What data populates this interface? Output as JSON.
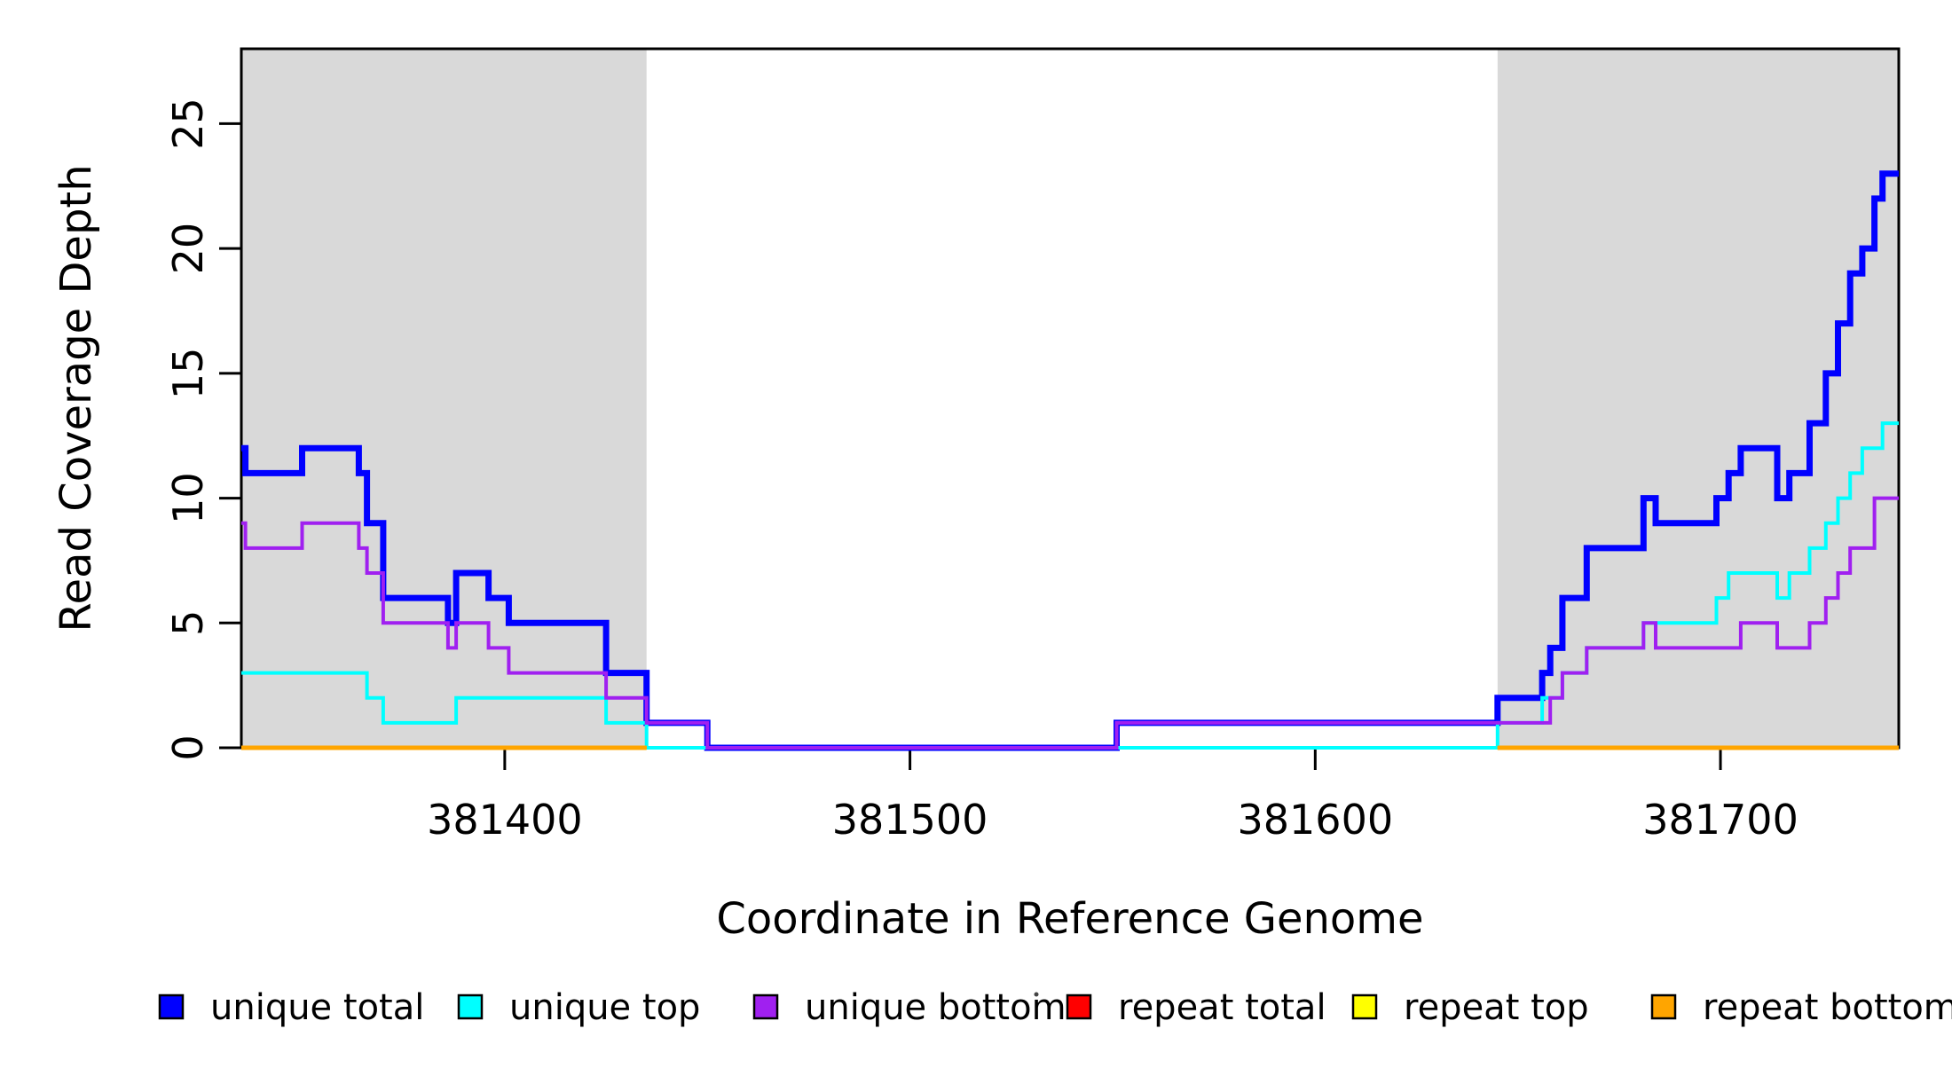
{
  "chart_data": {
    "type": "line",
    "subtype": "step",
    "title": "",
    "xlabel": "Coordinate in Reference Genome",
    "ylabel": "Read Coverage Depth",
    "xlim": [
      381335,
      381744
    ],
    "ylim": [
      0,
      28
    ],
    "x_ticks": [
      "381400",
      "381500",
      "381600",
      "381700"
    ],
    "y_ticks": [
      "0",
      "5",
      "10",
      "15",
      "20",
      "25"
    ],
    "grid": false,
    "legend_position": "bottom",
    "shaded_regions": [
      {
        "name": "repeat region left",
        "x0": 381335,
        "x1": 381435,
        "color": "#D9D9D9"
      },
      {
        "name": "repeat region right",
        "x0": 381645,
        "x1": 381744,
        "color": "#D9D9D9"
      }
    ],
    "series": [
      {
        "name": "unique total",
        "color": "#0000FF",
        "line_width": 7,
        "segments": [
          {
            "end": 381744,
            "steps": [
              [
                381335,
                12
              ],
              [
                381336,
                11
              ],
              [
                381350,
                12
              ],
              [
                381364,
                11
              ],
              [
                381366,
                9
              ],
              [
                381370,
                6
              ],
              [
                381386,
                5
              ],
              [
                381388,
                7
              ],
              [
                381396,
                6
              ],
              [
                381401,
                5
              ],
              [
                381425,
                3
              ],
              [
                381435,
                1
              ],
              [
                381450,
                0
              ],
              [
                381551,
                1
              ],
              [
                381645,
                2
              ],
              [
                381656,
                3
              ],
              [
                381658,
                4
              ],
              [
                381661,
                6
              ],
              [
                381667,
                8
              ],
              [
                381681,
                10
              ],
              [
                381684,
                9
              ],
              [
                381699,
                10
              ],
              [
                381702,
                11
              ],
              [
                381705,
                12
              ],
              [
                381714,
                10
              ],
              [
                381717,
                11
              ],
              [
                381722,
                13
              ],
              [
                381726,
                15
              ],
              [
                381729,
                17
              ],
              [
                381732,
                19
              ],
              [
                381735,
                20
              ],
              [
                381738,
                22
              ],
              [
                381740,
                23
              ]
            ]
          }
        ]
      },
      {
        "name": "unique top",
        "color": "#00FFFF",
        "line_width": 4,
        "segments": [
          {
            "end": 381744,
            "steps": [
              [
                381335,
                3
              ],
              [
                381366,
                2
              ],
              [
                381370,
                1
              ],
              [
                381388,
                2
              ],
              [
                381425,
                1
              ],
              [
                381435,
                0
              ],
              [
                381645,
                1
              ],
              [
                381656,
                2
              ],
              [
                381661,
                3
              ],
              [
                381667,
                4
              ],
              [
                381681,
                5
              ],
              [
                381699,
                6
              ],
              [
                381702,
                7
              ],
              [
                381714,
                6
              ],
              [
                381717,
                7
              ],
              [
                381722,
                8
              ],
              [
                381726,
                9
              ],
              [
                381729,
                10
              ],
              [
                381732,
                11
              ],
              [
                381735,
                12
              ],
              [
                381740,
                13
              ]
            ]
          }
        ]
      },
      {
        "name": "unique bottom",
        "color": "#A020F0",
        "line_width": 4,
        "segments": [
          {
            "end": 381744,
            "steps": [
              [
                381335,
                9
              ],
              [
                381336,
                8
              ],
              [
                381350,
                9
              ],
              [
                381364,
                8
              ],
              [
                381366,
                7
              ],
              [
                381370,
                5
              ],
              [
                381386,
                4
              ],
              [
                381388,
                5
              ],
              [
                381396,
                4
              ],
              [
                381401,
                3
              ],
              [
                381425,
                2
              ],
              [
                381435,
                1
              ],
              [
                381450,
                0
              ],
              [
                381551,
                1
              ],
              [
                381658,
                2
              ],
              [
                381661,
                3
              ],
              [
                381667,
                4
              ],
              [
                381681,
                5
              ],
              [
                381684,
                4
              ],
              [
                381705,
                5
              ],
              [
                381714,
                4
              ],
              [
                381722,
                5
              ],
              [
                381726,
                6
              ],
              [
                381729,
                7
              ],
              [
                381732,
                8
              ],
              [
                381738,
                10
              ]
            ]
          }
        ]
      },
      {
        "name": "repeat total",
        "color": "#FF0000",
        "line_width": 4,
        "segments": [
          {
            "end": 381435,
            "steps": [
              [
                381335,
                0
              ]
            ]
          },
          {
            "end": 381744,
            "steps": [
              [
                381645,
                0
              ]
            ]
          }
        ]
      },
      {
        "name": "repeat top",
        "color": "#FFFF00",
        "line_width": 4,
        "segments": [
          {
            "end": 381435,
            "steps": [
              [
                381335,
                0
              ]
            ]
          },
          {
            "end": 381744,
            "steps": [
              [
                381645,
                0
              ]
            ]
          }
        ]
      },
      {
        "name": "repeat bottom",
        "color": "#FFA500",
        "line_width": 5,
        "segments": [
          {
            "end": 381435,
            "steps": [
              [
                381335,
                0
              ]
            ]
          },
          {
            "end": 381744,
            "steps": [
              [
                381645,
                0
              ]
            ]
          }
        ]
      }
    ]
  },
  "legend": {
    "items": [
      {
        "label": "unique total",
        "color": "#0000FF"
      },
      {
        "label": "unique top",
        "color": "#00FFFF"
      },
      {
        "label": "unique bottom",
        "color": "#A020F0"
      },
      {
        "label": "repeat total",
        "color": "#FF0000"
      },
      {
        "label": "repeat top",
        "color": "#FFFF00"
      },
      {
        "label": "repeat bottom",
        "color": "#FFA500"
      }
    ]
  }
}
